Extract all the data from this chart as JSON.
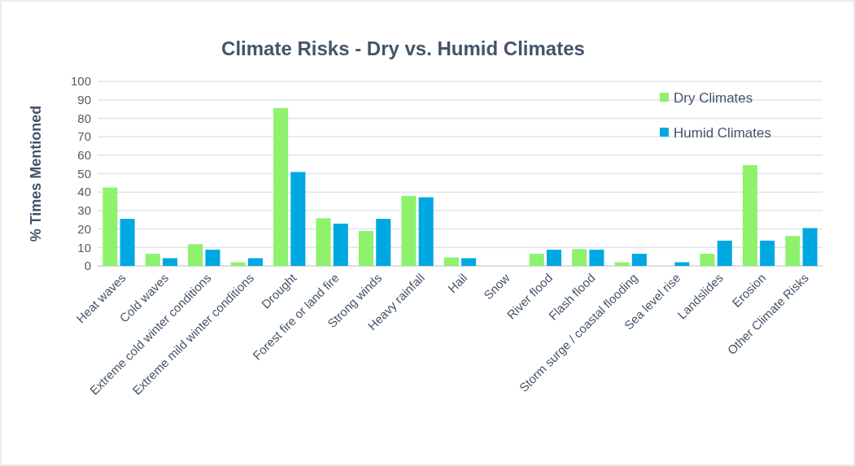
{
  "chart_data": {
    "type": "bar",
    "title": "Climate Risks - Dry vs. Humid Climates",
    "ylabel": "% Times Mentioned",
    "categories": [
      "Heat waves",
      "Cold waves",
      "Extreme cold winter conditions",
      "Extreme mild winter conditions",
      "Drought",
      "Forest fire or land fire",
      "Strong winds",
      "Heavy rainfall",
      "Hail",
      "Snow",
      "River flood",
      "Flash flood",
      "Storm surge / coastal flooding",
      "Sea level rise",
      "Landslides",
      "Erosion",
      "Other Climate Risks"
    ],
    "series": [
      {
        "name": "Dry Climates",
        "color": "#8ef26c",
        "values": [
          42.5,
          6.6,
          11.8,
          2,
          85.5,
          25.8,
          18.9,
          37.9,
          4.6,
          0,
          6.6,
          9.1,
          2,
          0,
          6.6,
          54.6,
          16.2
        ]
      },
      {
        "name": "Humid Climates",
        "color": "#00a8e2",
        "values": [
          25.5,
          4.2,
          8.8,
          4.2,
          50.9,
          22.9,
          25.5,
          37.2,
          4.2,
          0,
          8.8,
          8.8,
          6.6,
          2,
          13.7,
          13.7,
          20.5
        ]
      }
    ],
    "ylim": [
      0,
      100
    ],
    "yticks": [
      0,
      10,
      20,
      30,
      40,
      50,
      60,
      70,
      80,
      90,
      100
    ],
    "grid": "y",
    "legend": "top right"
  }
}
